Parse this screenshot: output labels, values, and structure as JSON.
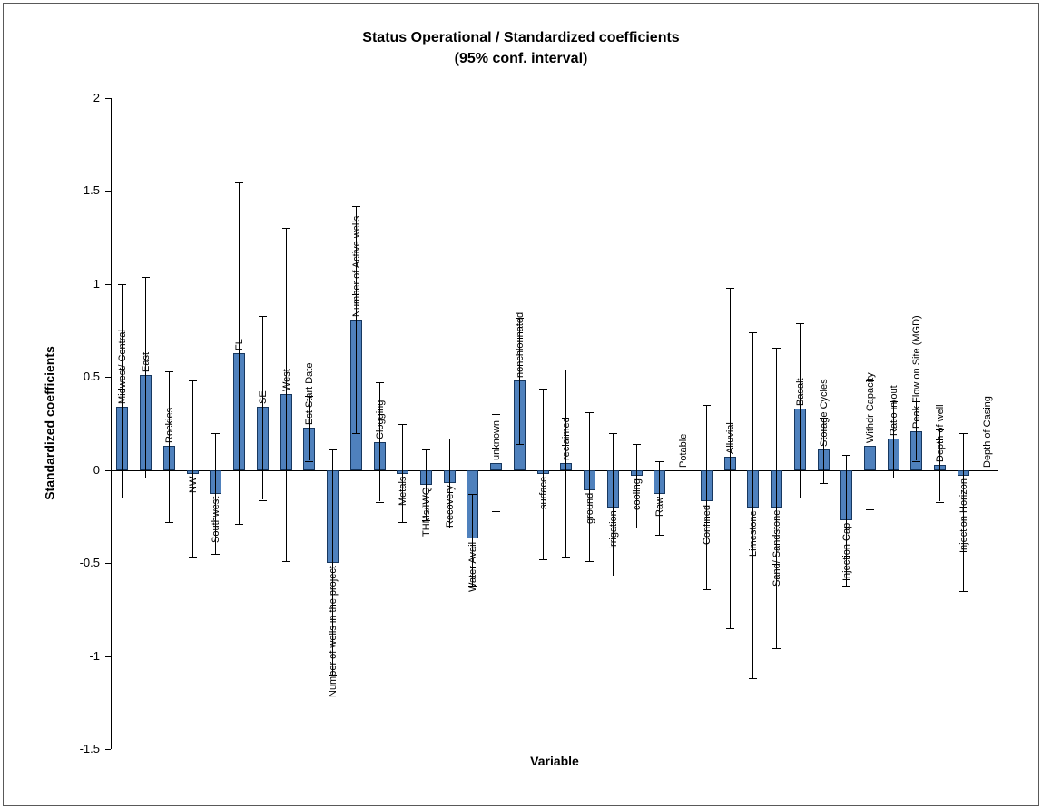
{
  "chart_data": {
    "type": "bar",
    "title": "Status Operational / Standardized coefficients",
    "subtitle": "(95% conf. interval)",
    "xlabel": "Variable",
    "ylabel": "Standardized coefficients",
    "ylim": [
      -1.5,
      2
    ],
    "y_ticks": [
      "2",
      "1.5",
      "1",
      "0.5",
      "0",
      "-0.5",
      "-1",
      "-1.5"
    ],
    "grid": false,
    "legend": false,
    "error_bars": "95% confidence interval",
    "categories": [
      "Midwest/ Central",
      "East",
      "Rockies",
      "NW",
      "Southwest",
      "FL",
      "SE",
      "West",
      "Est Start Date",
      "Number of wells in the project",
      "Number of Active wells",
      "Clogging",
      "Metals",
      "THMs/IWQ",
      "Recovery",
      "Water Avail",
      "unknown",
      "nonchlorinated",
      "surface",
      "reclaimed",
      "ground",
      "Irrigation",
      "cooling",
      "Raw",
      "Potable",
      "Confined",
      "Alluvial",
      "Limestone",
      "Sand/ Sandstone",
      "Basalt",
      "Storage Cycles",
      "Injection Cap",
      "Withdr Capacity",
      "Ratio in/out",
      "Peak Flow on Site (MGD)",
      "Depth of well",
      "Injection Horizon",
      "Depth of Casing"
    ],
    "series": [
      {
        "name": "Standardized coefficients",
        "values": [
          0.34,
          0.51,
          0.13,
          -0.02,
          -0.13,
          0.63,
          0.34,
          0.41,
          0.23,
          -0.5,
          0.81,
          0.15,
          -0.02,
          -0.08,
          -0.07,
          -0.37,
          0.04,
          0.48,
          -0.02,
          0.04,
          -0.11,
          -0.2,
          -0.03,
          -0.13,
          0.0,
          -0.17,
          0.07,
          -0.2,
          -0.2,
          0.33,
          0.11,
          -0.27,
          0.13,
          0.17,
          0.21,
          0.03,
          -0.03,
          0.0
        ]
      }
    ],
    "values": [
      0.34,
      0.51,
      0.13,
      -0.02,
      -0.13,
      0.63,
      0.34,
      0.41,
      0.23,
      -0.5,
      0.81,
      0.15,
      -0.02,
      -0.08,
      -0.07,
      -0.37,
      0.04,
      0.48,
      -0.02,
      0.04,
      -0.11,
      -0.2,
      -0.03,
      -0.13,
      0.0,
      -0.17,
      0.07,
      -0.2,
      -0.2,
      0.33,
      0.11,
      -0.27,
      0.13,
      0.17,
      0.21,
      0.03,
      -0.03,
      0.0
    ],
    "ci_low": [
      -0.15,
      -0.04,
      -0.28,
      -0.47,
      -0.45,
      -0.29,
      -0.16,
      -0.49,
      0.05,
      -1.1,
      0.2,
      -0.17,
      -0.28,
      -0.27,
      -0.31,
      -0.62,
      -0.22,
      0.14,
      -0.48,
      -0.47,
      -0.49,
      -0.57,
      -0.31,
      -0.35,
      null,
      -0.64,
      -0.85,
      -1.12,
      -0.96,
      -0.15,
      -0.07,
      -0.62,
      -0.21,
      -0.04,
      0.05,
      -0.17,
      -0.65,
      null
    ],
    "ci_high": [
      1.0,
      1.04,
      0.53,
      0.48,
      0.2,
      1.55,
      0.83,
      1.3,
      0.4,
      0.11,
      1.42,
      0.47,
      0.25,
      0.11,
      0.17,
      -0.13,
      0.3,
      0.82,
      0.44,
      0.54,
      0.31,
      0.2,
      0.14,
      0.05,
      null,
      0.35,
      0.98,
      0.74,
      0.66,
      0.79,
      0.28,
      0.08,
      0.48,
      0.37,
      0.37,
      0.22,
      0.2,
      null
    ],
    "colors": {
      "bar_fill": "#4F81BD",
      "bar_border": "#17375E",
      "error_bar": "#000000",
      "axis": "#000000",
      "text": "#000000"
    }
  }
}
